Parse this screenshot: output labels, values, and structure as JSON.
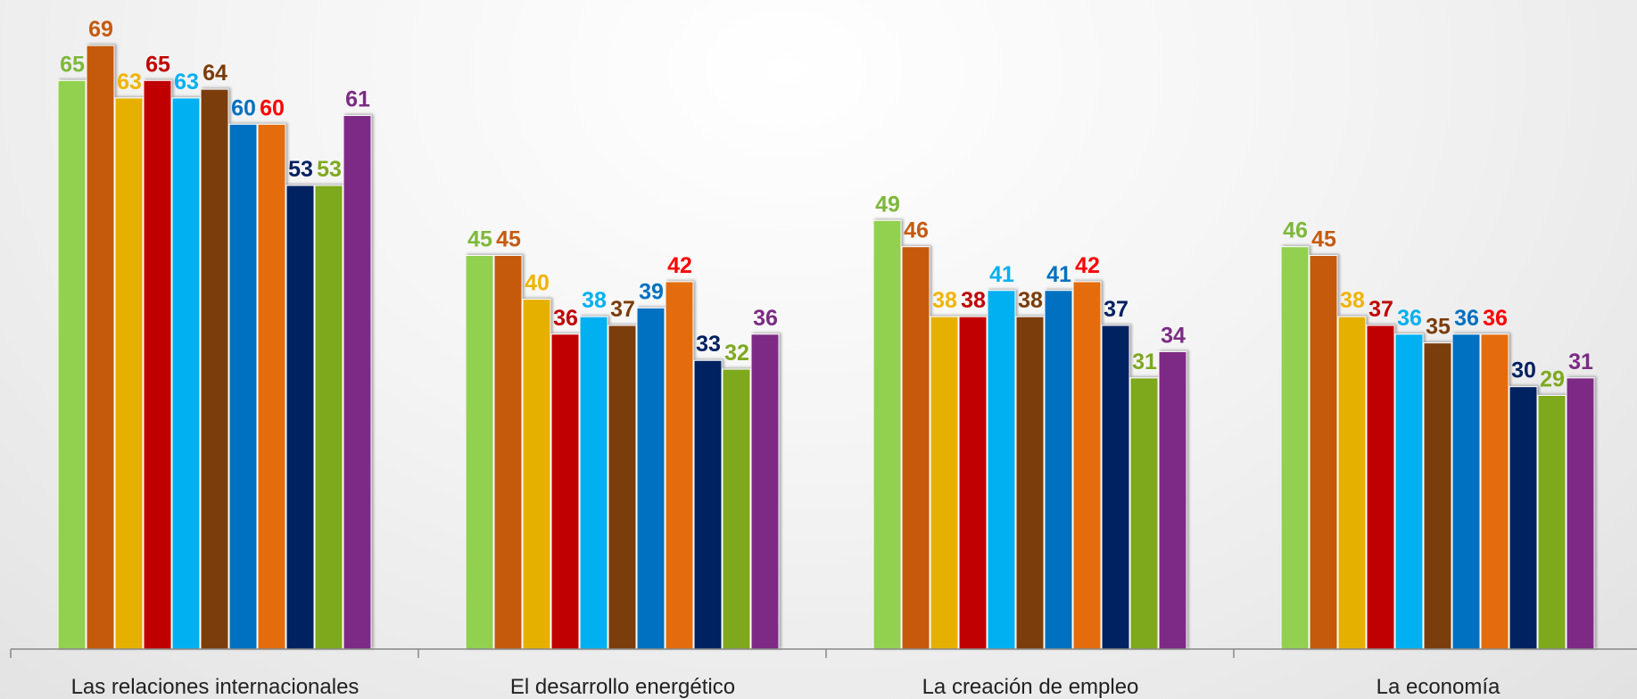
{
  "chart_data": {
    "type": "bar",
    "categories": [
      "Las relaciones internacionales",
      "El desarrollo energético",
      "La creación de empleo",
      "La economía"
    ],
    "ylim": [
      0,
      74
    ],
    "series": [
      {
        "color": "#92d050",
        "label_color": "#7eb83a",
        "values": [
          65,
          45,
          49,
          46
        ]
      },
      {
        "color": "#c55a11",
        "label_color": "#c55a11",
        "values": [
          69,
          45,
          46,
          45
        ]
      },
      {
        "color": "#e6b000",
        "label_color": "#f0b400",
        "values": [
          63,
          40,
          38,
          38
        ]
      },
      {
        "color": "#c00000",
        "label_color": "#c00000",
        "values": [
          65,
          36,
          38,
          37
        ]
      },
      {
        "color": "#00b0f0",
        "label_color": "#00b0f0",
        "values": [
          63,
          38,
          41,
          36
        ]
      },
      {
        "color": "#7b3c0a",
        "label_color": "#7b3c0a",
        "values": [
          64,
          37,
          38,
          35
        ]
      },
      {
        "color": "#0070c0",
        "label_color": "#0070c0",
        "values": [
          60,
          39,
          41,
          36
        ]
      },
      {
        "color": "#e46c0a",
        "label_color": "#ff0000",
        "values": [
          60,
          42,
          42,
          36
        ]
      },
      {
        "color": "#002060",
        "label_color": "#002060",
        "values": [
          53,
          33,
          37,
          30
        ]
      },
      {
        "color": "#7ea91f",
        "label_color": "#7ea91f",
        "values": [
          53,
          32,
          31,
          29
        ]
      },
      {
        "color": "#7b2c84",
        "label_color": "#7b2c84",
        "values": [
          61,
          36,
          34,
          31
        ]
      }
    ]
  }
}
